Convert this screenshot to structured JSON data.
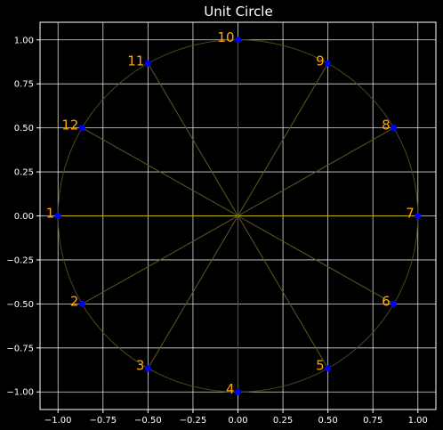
{
  "chart_data": {
    "type": "scatter",
    "title": "Unit Circle",
    "xlabel": "",
    "ylabel": "",
    "xlim": [
      -1.1,
      1.1
    ],
    "ylim": [
      -1.1,
      1.1
    ],
    "grid": true,
    "x_ticks": [
      -1.0,
      -0.75,
      -0.5,
      -0.25,
      0.0,
      0.25,
      0.5,
      0.75,
      1.0
    ],
    "y_ticks": [
      -1.0,
      -0.75,
      -0.5,
      -0.25,
      0.0,
      0.25,
      0.5,
      0.75,
      1.0
    ],
    "x_tick_labels": [
      "−1.00",
      "−0.75",
      "−0.50",
      "−0.25",
      "0.00",
      "0.25",
      "0.50",
      "0.75",
      "1.00"
    ],
    "y_tick_labels": [
      "−1.00",
      "−0.75",
      "−0.50",
      "−0.25",
      "0.00",
      "0.25",
      "0.50",
      "0.75",
      "1.00"
    ],
    "points": [
      {
        "label": "1",
        "x": -1.0,
        "y": 0.0
      },
      {
        "label": "2",
        "x": -0.866,
        "y": -0.5
      },
      {
        "label": "3",
        "x": -0.5,
        "y": -0.866
      },
      {
        "label": "4",
        "x": 0.0,
        "y": -1.0
      },
      {
        "label": "5",
        "x": 0.5,
        "y": -0.866
      },
      {
        "label": "6",
        "x": 0.866,
        "y": -0.5
      },
      {
        "label": "7",
        "x": 1.0,
        "y": 0.0
      },
      {
        "label": "8",
        "x": 0.866,
        "y": 0.5
      },
      {
        "label": "9",
        "x": 0.5,
        "y": 0.866
      },
      {
        "label": "10",
        "x": 0.0,
        "y": 1.0
      },
      {
        "label": "11",
        "x": -0.5,
        "y": 0.866
      },
      {
        "label": "12",
        "x": -0.866,
        "y": 0.5
      }
    ],
    "colors": {
      "background": "#000000",
      "axes_frame": "#ffffff",
      "grid": "#ffffff",
      "circle": "#4a4a1a",
      "spokes": "#5a5a22",
      "x_axis_line": "#c8b400",
      "markers": "#0000ff",
      "point_labels": "#ffa500",
      "text": "#ffffff"
    }
  }
}
